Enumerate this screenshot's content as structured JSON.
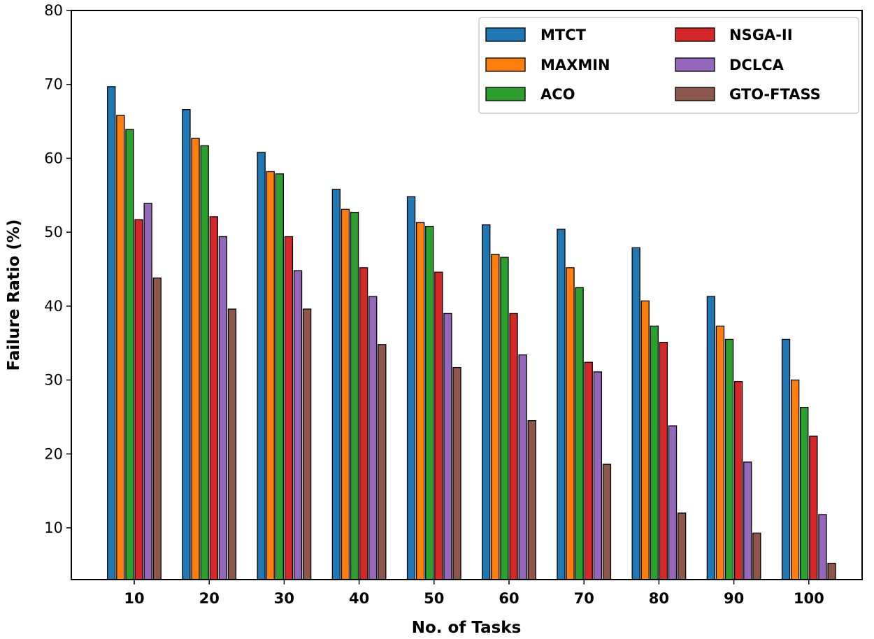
{
  "chart_data": {
    "type": "bar",
    "title": "",
    "xlabel": "No. of Tasks",
    "ylabel": "Failure Ratio (%)",
    "categories": [
      "10",
      "20",
      "30",
      "40",
      "50",
      "60",
      "70",
      "80",
      "90",
      "100"
    ],
    "ylim": [
      3,
      80
    ],
    "yticks": [
      10,
      20,
      30,
      40,
      50,
      60,
      70,
      80
    ],
    "grid": false,
    "legend_position": "top-right",
    "series": [
      {
        "name": "MTCT",
        "color": "#1f77b4",
        "values": [
          69.7,
          66.6,
          60.8,
          55.8,
          54.8,
          51.0,
          50.4,
          47.9,
          41.3,
          35.5
        ]
      },
      {
        "name": "MAXMIN",
        "color": "#ff7f0e",
        "values": [
          65.8,
          62.7,
          58.2,
          53.1,
          51.3,
          47.0,
          45.2,
          40.7,
          37.3,
          30.0
        ]
      },
      {
        "name": "ACO",
        "color": "#2ca02c",
        "values": [
          63.9,
          61.7,
          57.9,
          52.7,
          50.8,
          46.6,
          42.5,
          37.3,
          35.5,
          26.3
        ]
      },
      {
        "name": "NSGA-II",
        "color": "#d62728",
        "values": [
          51.7,
          52.1,
          49.4,
          45.2,
          44.6,
          39.0,
          32.4,
          35.1,
          29.8,
          22.4
        ]
      },
      {
        "name": "DCLCA",
        "color": "#9467bd",
        "values": [
          53.9,
          49.4,
          44.8,
          41.3,
          39.0,
          33.4,
          31.1,
          23.8,
          18.9,
          11.8
        ]
      },
      {
        "name": "GTO-FTASS",
        "color": "#8c564b",
        "values": [
          43.8,
          39.6,
          39.6,
          34.8,
          31.7,
          24.5,
          18.6,
          12.0,
          9.3,
          5.2
        ]
      }
    ]
  }
}
